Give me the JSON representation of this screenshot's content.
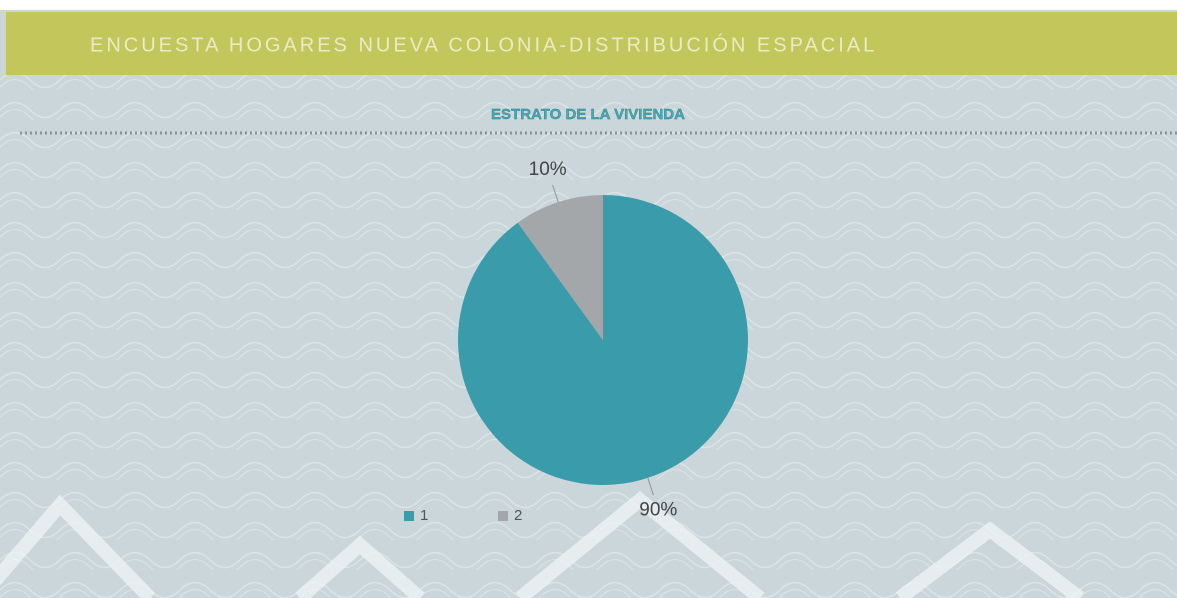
{
  "header": {
    "title": "ENCUESTA HOGARES NUEVA COLONIA-DISTRIBUCIÓN ESPACIAL"
  },
  "chart_data": {
    "type": "pie",
    "title": "ESTRATO DE LA VIVIENDA",
    "categories": [
      "1",
      "2"
    ],
    "values": [
      90,
      10
    ],
    "value_labels": [
      "90%",
      "10%"
    ],
    "colors": [
      "#3a9bab",
      "#a3a7a9"
    ],
    "legend": "bottom"
  }
}
